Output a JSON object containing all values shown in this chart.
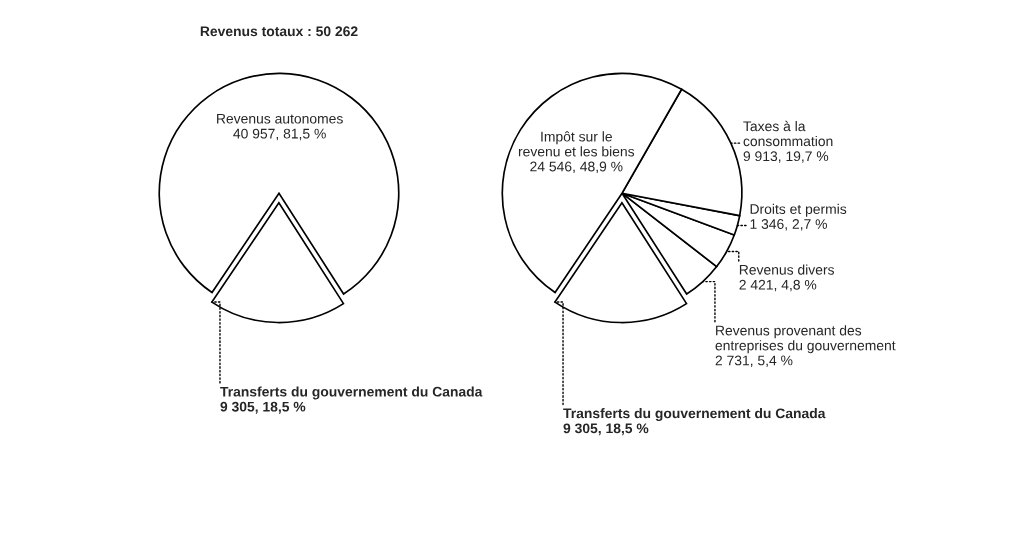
{
  "chart_data": [
    {
      "type": "pie",
      "title": "Revenus totaux : 50 262",
      "categories": [
        "Transferts du gouvernement du Canada",
        "Revenus autonomes"
      ],
      "values": [
        9305,
        40957
      ],
      "colors": [
        "#ffffff",
        "#ffffff"
      ],
      "value_labels": [
        "9 305, 18,5 %",
        "40 957, 81,5 %"
      ]
    },
    {
      "type": "pie",
      "categories": [
        "Transferts du gouvernement du Canada",
        "Revenus provenant des\nentreprises du gouvernement",
        "Revenus divers",
        "Droits et permis",
        "Taxes à la\nconsommation",
        "Impôt sur le\nrevenu et les biens"
      ],
      "values": [
        9305,
        2731,
        2421,
        1346,
        9913,
        24546
      ],
      "colors": [
        "#ffffff",
        "#ffffff",
        "#ffffff",
        "#ffffff",
        "#ffffff",
        "#ffffff"
      ],
      "value_labels": [
        "9 305, 18,5 %",
        "2 731, 5,4 %",
        "2 421, 4,8 %",
        "1 346, 2,7 %",
        "9 913, 19,7 %",
        "24 546, 48,9 %"
      ]
    }
  ]
}
